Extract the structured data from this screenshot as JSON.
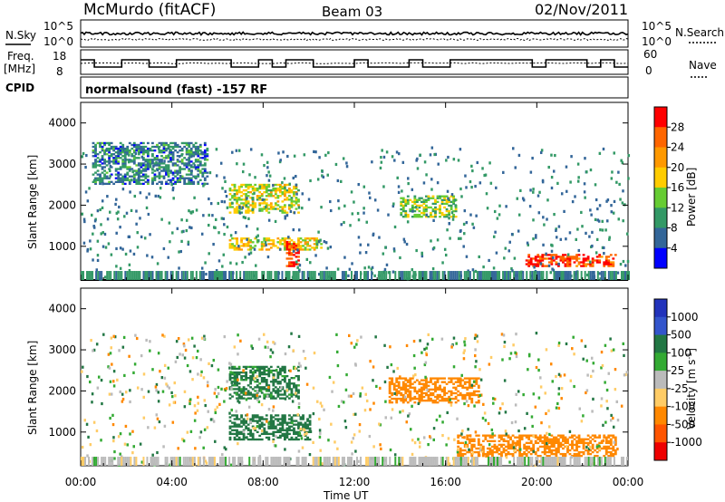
{
  "header": {
    "station": "McMurdo (fitACF)",
    "beam": "Beam 03",
    "date": "02/Nov/2011"
  },
  "strips": {
    "nsky_label": "N.Sky",
    "nsearch_label": "N.Search",
    "freq_label_line1": "Freq.",
    "freq_label_line2": "[MHz]",
    "nave_label": "Nave",
    "cpid_label": "CPID",
    "noise_ticks_left": [
      "10^5",
      "10^0"
    ],
    "noise_ticks_right": [
      "10^5",
      "10^0"
    ],
    "freq_ticks": [
      "18",
      "8"
    ],
    "nave_ticks": [
      "60",
      "0"
    ],
    "cpid_text": "normalsound (fast) -157 RF"
  },
  "power_scale": {
    "label": "Power [dB]",
    "ticks": [
      "28",
      "24",
      "20",
      "16",
      "12",
      "8",
      "4"
    ],
    "colors": [
      "#ff0000",
      "#ff6600",
      "#ff9900",
      "#ffcc00",
      "#66cc33",
      "#339966",
      "#336699",
      "#0000ff"
    ]
  },
  "velocity_scale": {
    "label": "Velocity [m s^-1]",
    "ticks": [
      "1000",
      "500",
      "100",
      "25",
      "-25",
      "-100",
      "-500",
      "-1000"
    ],
    "colors": [
      "#2233bb",
      "#3355cc",
      "#227744",
      "#33aa33",
      "#bbbbbb",
      "#ffcc66",
      "#ff8800",
      "#ff5500",
      "#ee0000"
    ]
  },
  "chart_data": [
    {
      "type": "heatmap",
      "title": "",
      "xlabel": "Time UT",
      "ylabel": "Slant Range [km]",
      "xlim": [
        "00:00",
        "24:00"
      ],
      "ylim": [
        180,
        4500
      ],
      "xticks": [
        "00:00",
        "04:00",
        "08:00",
        "12:00",
        "16:00",
        "20:00",
        "00:00"
      ],
      "yticks": [
        "1000",
        "2000",
        "3000",
        "4000"
      ],
      "colorbar": "Power [dB]",
      "colorbar_ticks": [
        4,
        8,
        12,
        16,
        20,
        24,
        28
      ],
      "description_regions": [
        {
          "t_start": 0.5,
          "t_end": 5.5,
          "range_start": 2500,
          "range_end": 3500,
          "power_db": 6
        },
        {
          "t_start": 6.5,
          "t_end": 9.5,
          "range_start": 1800,
          "range_end": 2500,
          "power_db": 14
        },
        {
          "t_start": 6.5,
          "t_end": 10.5,
          "range_start": 900,
          "range_end": 1200,
          "power_db": 16
        },
        {
          "t_start": 9.0,
          "t_end": 9.5,
          "range_start": 500,
          "range_end": 1100,
          "power_db": 26
        },
        {
          "t_start": 14.0,
          "t_end": 16.5,
          "range_start": 1700,
          "range_end": 2200,
          "power_db": 12
        },
        {
          "t_start": 19.5,
          "t_end": 23.5,
          "range_start": 500,
          "range_end": 800,
          "power_db": 26
        }
      ]
    },
    {
      "type": "heatmap",
      "title": "",
      "xlabel": "Time UT",
      "ylabel": "Slant Range [km]",
      "xlim": [
        "00:00",
        "24:00"
      ],
      "ylim": [
        180,
        4500
      ],
      "xticks": [
        "00:00",
        "04:00",
        "08:00",
        "12:00",
        "16:00",
        "20:00",
        "00:00"
      ],
      "yticks": [
        "1000",
        "2000",
        "3000",
        "4000"
      ],
      "colorbar": "Velocity [m s^-1]",
      "colorbar_ticks": [
        1000,
        500,
        100,
        25,
        -25,
        -100,
        -500,
        -1000
      ],
      "description_regions": [
        {
          "t_start": 6.5,
          "t_end": 9.5,
          "range_start": 1800,
          "range_end": 2600,
          "velocity": 200
        },
        {
          "t_start": 6.5,
          "t_end": 10.0,
          "range_start": 800,
          "range_end": 1400,
          "velocity": 300
        },
        {
          "t_start": 13.5,
          "t_end": 17.5,
          "range_start": 1700,
          "range_end": 2300,
          "velocity": -300
        },
        {
          "t_start": 16.5,
          "t_end": 23.5,
          "range_start": 400,
          "range_end": 900,
          "velocity": -300
        }
      ]
    }
  ]
}
